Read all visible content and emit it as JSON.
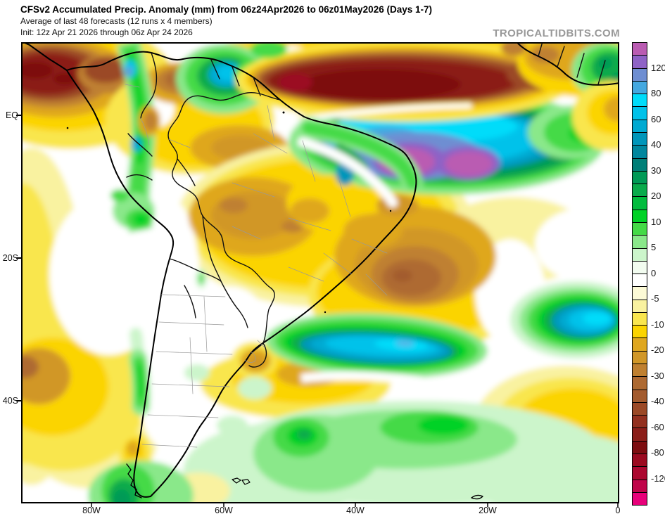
{
  "header": {
    "title": "CFSv2 Accumulated Precip. Anomaly (mm) from 06z24Apr2026 to 06z01May2026 (Days 1-7)",
    "subtitle": "Average of last 48 forecasts (12 runs x 4 members)",
    "init": "Init: 12z Apr 21 2026 through 06z Apr 24 2026",
    "watermark": "TROPICALTIDBITS.COM"
  },
  "map": {
    "lat_labels": [
      "EQ",
      "20S",
      "40S"
    ],
    "lon_labels": [
      "80W",
      "60W",
      "40W",
      "20W",
      "0"
    ]
  },
  "colorbar": {
    "units": "mm",
    "labels": [
      "120",
      "80",
      "60",
      "40",
      "30",
      "20",
      "10",
      "5",
      "0",
      "-5",
      "-10",
      "-20",
      "-30",
      "-40",
      "-60",
      "-80",
      "-120"
    ],
    "cells": [
      "#ba5cb2",
      "#8e62c6",
      "#6e8ed2",
      "#44a8e0",
      "#00dcfa",
      "#00c2ea",
      "#00aad2",
      "#0096ba",
      "#00879e",
      "#007f78",
      "#009a56",
      "#0aab4c",
      "#02bc3e",
      "#00d226",
      "#44da46",
      "#8ae88a",
      "#ccf5cb",
      "#f2fcf0",
      "#ffffff",
      "#fcfad6",
      "#f9f2a0",
      "#f9e64e",
      "#fbd400",
      "#dfa71f",
      "#d19727",
      "#bf8030",
      "#ae6a32",
      "#a35b2e",
      "#9b4926",
      "#93301f",
      "#8b1e19",
      "#7d0d10",
      "#9b0a20",
      "#ac0830",
      "#c0054a",
      "#e8017a"
    ]
  },
  "chart_data": {
    "type": "filled_contour_map",
    "variable": "Accumulated precipitation anomaly",
    "units": "mm",
    "model": "CFSv2",
    "valid_period": "06z24Apr2026 to 06z01May2026 (Days 1-7)",
    "region": "South America and adjacent Atlantic, approx 90W-0E lon, 48S-13N lat",
    "contour_levels": [
      -150,
      -120,
      -100,
      -80,
      -60,
      -50,
      -40,
      -35,
      -30,
      -25,
      -20,
      -15,
      -10,
      -7.5,
      -5,
      -2.5,
      0,
      2.5,
      5,
      7.5,
      10,
      15,
      20,
      25,
      30,
      35,
      40,
      50,
      60,
      70,
      80,
      100,
      120,
      150
    ],
    "labeled_levels": [
      120,
      80,
      60,
      40,
      30,
      20,
      10,
      5,
      0,
      -5,
      -10,
      -20,
      -30,
      -40,
      -60,
      -80,
      -120
    ],
    "features": [
      {
        "area": "Pacific off Colombia / Panama (top-left corner)",
        "anomaly_mm": "-60 to -100"
      },
      {
        "area": "Tropical Atlantic ITCZ band north of Brazil",
        "anomaly_mm": "-60 to -150"
      },
      {
        "area": "Equatorial Atlantic east of NE Brazil",
        "anomaly_mm": "+40 to +150, purple cores > +120"
      },
      {
        "area": "Colombian Andes strip",
        "anomaly_mm": "+10 to +60"
      },
      {
        "area": "Guyana / far northern Brazil",
        "anomaly_mm": "+20 to +60"
      },
      {
        "area": "Central Brazil and interior Amazon",
        "anomaly_mm": "-10 to -30"
      },
      {
        "area": "SE Brazil coast and adjacent Atlantic",
        "anomaly_mm": "-20 to -40"
      },
      {
        "area": "Uruguay",
        "anomaly_mm": "-15 to -25"
      },
      {
        "area": "Atlantic off S Brazil / Uruguay (zonal band)",
        "anomaly_mm": "+20 to +80 with small +80/+100 core"
      },
      {
        "area": "SW Atlantic oval near 32S 12W",
        "anomaly_mm": "+20 to +70"
      },
      {
        "area": "Southern Chile Andes",
        "anomaly_mm": "+10 to +30"
      },
      {
        "area": "South Atlantic 40-45S band",
        "anomaly_mm": "+5 to +20"
      },
      {
        "area": "SE South Atlantic (bottom right)",
        "anomaly_mm": "-5 to -15"
      },
      {
        "area": "Gulf of Guinea coast (top right corner)",
        "anomaly_mm": "+10 to +30"
      }
    ]
  }
}
